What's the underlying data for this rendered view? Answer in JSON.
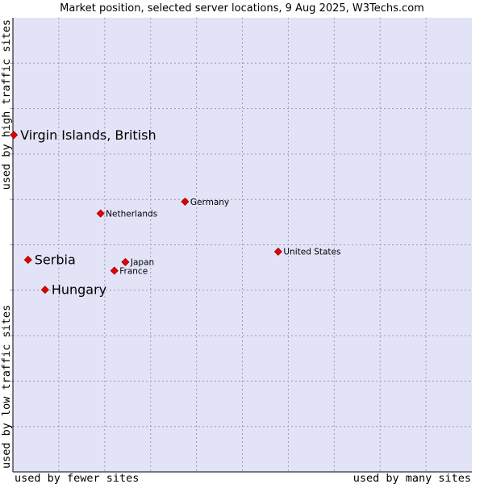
{
  "chart_data": {
    "type": "scatter",
    "title": "Market position, selected server locations, 9 Aug 2025, W3Techs.com",
    "xlabel_left": "used by fewer sites",
    "xlabel_right": "used by many sites",
    "ylabel_bottom": "used by low traffic sites",
    "ylabel_top": "used by high traffic sites",
    "xlim": [
      0,
      100
    ],
    "ylim": [
      0,
      100
    ],
    "grid": true,
    "colors": {
      "plot_background": "#e3e3f8",
      "axis": "#000000",
      "marker": "#e00000",
      "marker_border": "#a00000"
    },
    "points": [
      {
        "name": "Virgin Islands, British",
        "x": 0.2,
        "y": 74.2,
        "size": "large"
      },
      {
        "name": "Germany",
        "x": 37.5,
        "y": 59.5,
        "size": "small"
      },
      {
        "name": "Netherlands",
        "x": 19.1,
        "y": 56.9,
        "size": "small"
      },
      {
        "name": "United States",
        "x": 57.8,
        "y": 48.5,
        "size": "small"
      },
      {
        "name": "Serbia",
        "x": 3.3,
        "y": 46.7,
        "size": "large"
      },
      {
        "name": "Japan",
        "x": 24.5,
        "y": 46.2,
        "size": "small"
      },
      {
        "name": "France",
        "x": 22.1,
        "y": 44.3,
        "size": "small"
      },
      {
        "name": "Hungary",
        "x": 7.0,
        "y": 40.1,
        "size": "large"
      }
    ]
  }
}
